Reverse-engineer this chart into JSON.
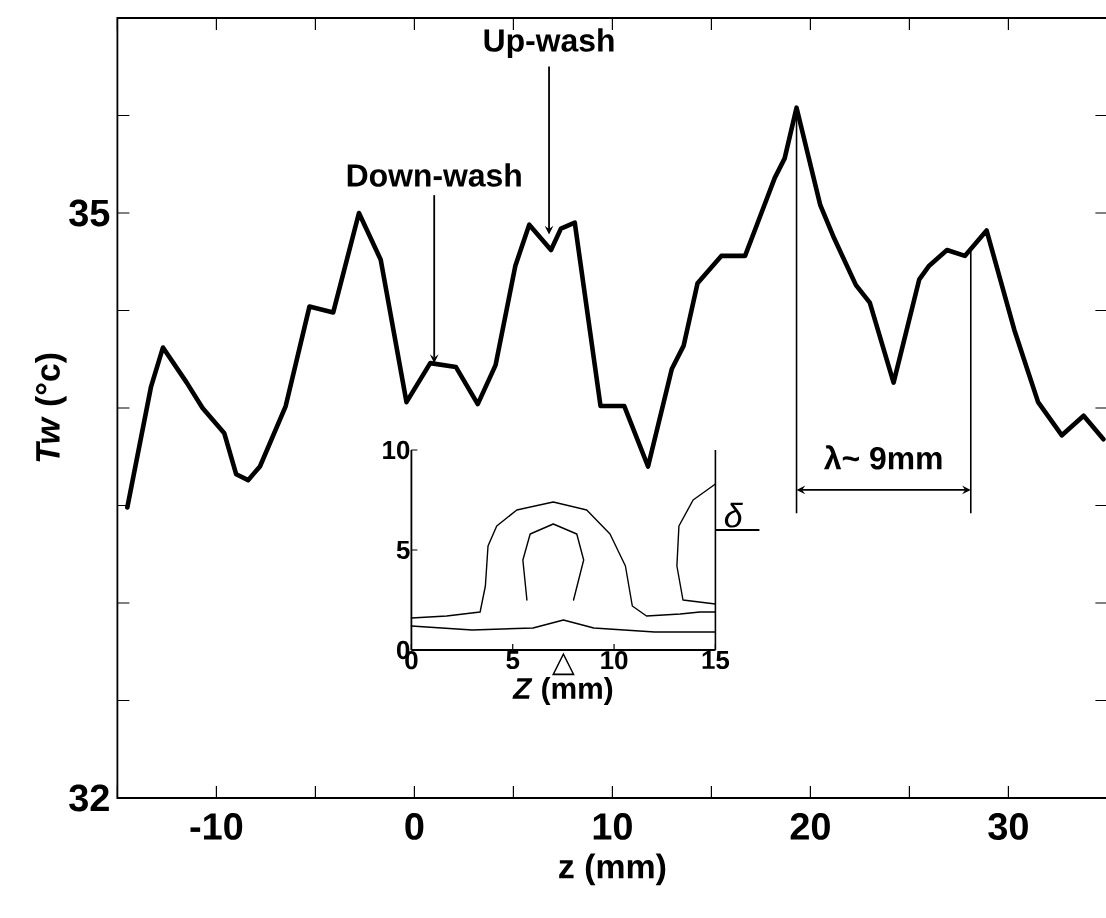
{
  "chart_data": [
    {
      "type": "line",
      "xlabel": "z (mm)",
      "ylabel": "*Tw* (°c)",
      "x": [
        -14.5,
        -13.3,
        -12.7,
        -11.5,
        -10.7,
        -9.6,
        -9.0,
        -8.4,
        -7.8,
        -6.5,
        -5.3,
        -4.1,
        -2.8,
        -1.7,
        -0.4,
        0.8,
        2.1,
        3.2,
        4.1,
        5.1,
        5.8,
        6.9,
        7.4,
        8.1,
        9.4,
        10.6,
        11.8,
        13.0,
        13.6,
        14.3,
        15.5,
        16.7,
        17.3,
        18.2,
        18.7,
        19.3,
        20.5,
        21.2,
        22.3,
        23.0,
        24.2,
        25.5,
        26.0,
        26.9,
        27.8,
        28.9,
        30.3,
        31.5,
        32.7,
        33.8,
        34.8
      ],
      "series": [
        {
          "color": "#000000",
          "values": [
            33.49,
            34.11,
            34.31,
            34.13,
            34.0,
            33.87,
            33.66,
            33.63,
            33.7,
            34.01,
            34.52,
            34.49,
            35.0,
            34.76,
            34.03,
            34.23,
            34.21,
            34.02,
            34.22,
            34.73,
            34.94,
            34.81,
            34.92,
            34.95,
            34.01,
            34.01,
            33.7,
            34.2,
            34.32,
            34.64,
            34.78,
            34.78,
            34.94,
            35.18,
            35.28,
            35.54,
            35.04,
            34.87,
            34.63,
            34.54,
            34.13,
            34.66,
            34.73,
            34.81,
            34.78,
            34.91,
            34.4,
            34.03,
            33.86,
            33.96,
            33.84
          ]
        }
      ],
      "xlim": [
        -15,
        35
      ],
      "ylim": [
        32,
        36
      ],
      "xticks": [
        {
          "value": -15,
          "label": null
        },
        -10,
        {
          "value": -5,
          "label": null
        },
        0,
        {
          "value": 5,
          "label": null
        },
        10,
        {
          "value": 15,
          "label": null
        },
        20,
        {
          "value": 25,
          "label": null
        },
        30,
        {
          "value": 35,
          "label": null
        }
      ],
      "yticks": [
        32,
        {
          "value": 32.5,
          "label": null
        },
        {
          "value": 33,
          "label": null
        },
        {
          "value": 33.5,
          "label": null
        },
        {
          "value": 34,
          "label": null
        },
        {
          "value": 34.5,
          "label": null
        },
        35,
        {
          "value": 35.5,
          "label": null
        },
        {
          "value": 36,
          "label": null
        }
      ],
      "annotations": [
        {
          "text": "Down-wash",
          "x": 1,
          "y": 34.23
        },
        {
          "text": "Up-wash",
          "x": 6.8,
          "y": 34.89
        },
        "λ~ 9mm"
      ],
      "ref_lines": [
        {
          "axis": "x",
          "value": 19.3
        },
        {
          "axis": "x",
          "value": 28.1
        }
      ]
    },
    {
      "type": "line",
      "xlabel": "*Z* (mm)",
      "xlim": [
        0,
        15
      ],
      "ylim": [
        0,
        10
      ],
      "xticks": [
        0,
        5,
        10,
        15
      ],
      "yticks": [
        0,
        5,
        10
      ],
      "series": [
        {
          "color": "#000000",
          "x": [
            0,
            1.74,
            3.39,
            3.65,
            3.78,
            4.21,
            5.2,
            7.0,
            8.65,
            9.8,
            10.56,
            10.9,
            11.6,
            13.26,
            14.24,
            15
          ],
          "values": [
            1.6,
            1.7,
            1.9,
            3.2,
            5.2,
            6.2,
            7.0,
            7.4,
            7.0,
            5.8,
            4.2,
            2.2,
            1.7,
            1.8,
            1.9,
            1.9
          ]
        },
        {
          "color": "#000000",
          "x": [
            5.7,
            5.5,
            5.86,
            7.0,
            8.16,
            8.5,
            8.0
          ],
          "values": [
            2.5,
            4.5,
            5.8,
            6.3,
            5.8,
            4.5,
            2.5
          ]
        },
        {
          "color": "#000000",
          "x": [
            15,
            13.9,
            13.2,
            13.1,
            13.4,
            15
          ],
          "values": [
            8.3,
            7.5,
            6.2,
            4.2,
            2.5,
            2.3
          ]
        },
        {
          "color": "#000000",
          "x": [
            0,
            3,
            6,
            7.5,
            9,
            12,
            15
          ],
          "values": [
            1.2,
            1.0,
            1.1,
            1.5,
            1.1,
            0.9,
            0.9
          ]
        }
      ],
      "annotations": [
        "△",
        "δ"
      ]
    }
  ]
}
